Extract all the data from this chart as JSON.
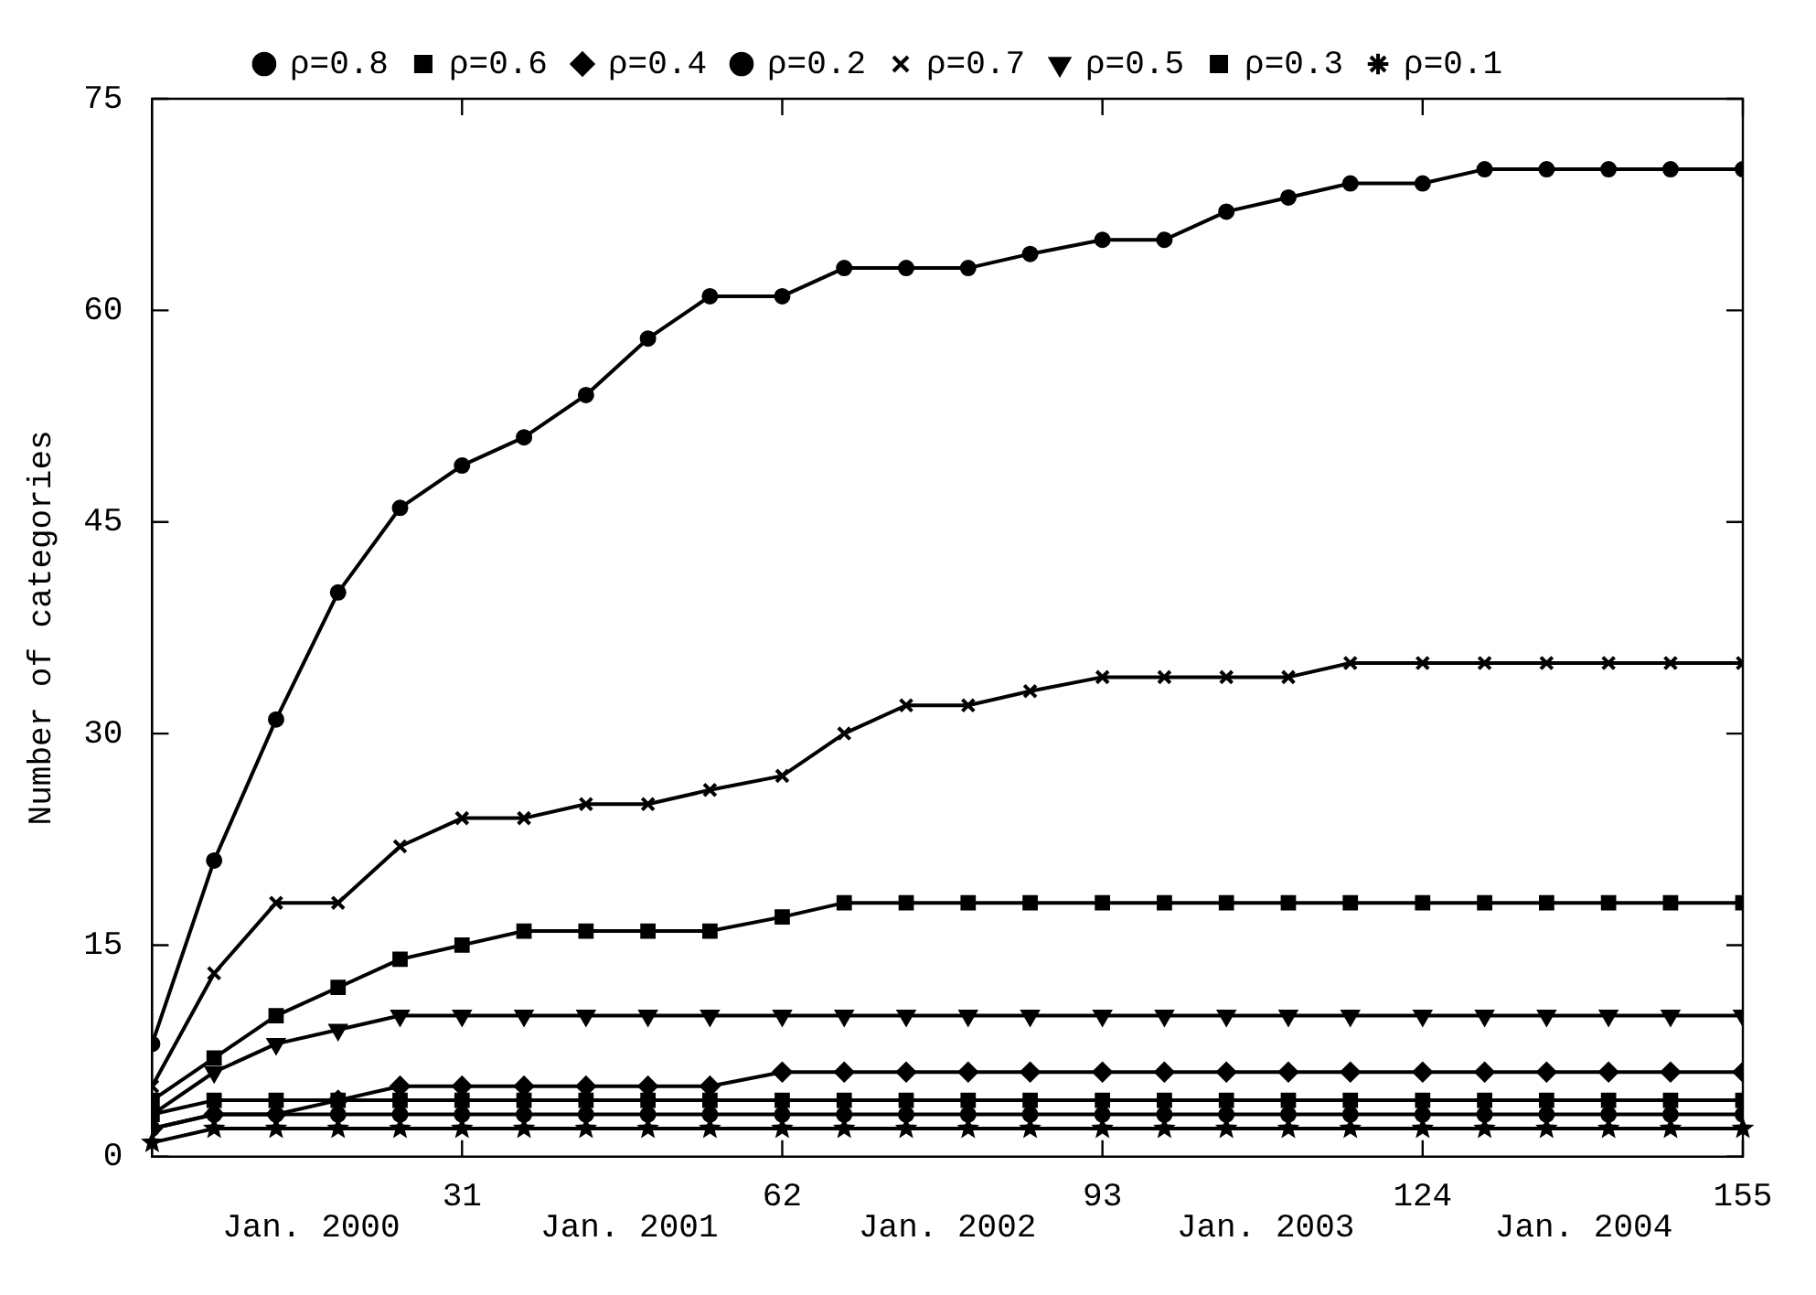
{
  "chart_data": {
    "type": "line",
    "ylabel": "Number of categories",
    "x": [
      1,
      7,
      13,
      19,
      25,
      31,
      37,
      43,
      49,
      55,
      62,
      68,
      74,
      80,
      86,
      93,
      99,
      105,
      111,
      117,
      124,
      130,
      136,
      142,
      148,
      155
    ],
    "xlim": [
      1,
      155
    ],
    "xticks": [
      31,
      62,
      93,
      124,
      155
    ],
    "annotations": [
      "Jan. 2000",
      "Jan. 2001",
      "Jan. 2002",
      "Jan. 2003",
      "Jan. 2004"
    ],
    "ylim": [
      0,
      75
    ],
    "yticks": [
      0,
      15,
      30,
      45,
      60,
      75
    ],
    "legend": "top",
    "line_style": "solid",
    "series": [
      {
        "name": "ρ=0.8",
        "color": "#000000",
        "marker": "circle",
        "values": [
          8,
          21,
          31,
          40,
          46,
          49,
          51,
          54,
          58,
          61,
          61,
          63,
          63,
          63,
          64,
          65,
          65,
          67,
          68,
          69,
          69,
          70,
          70,
          70,
          70,
          70
        ]
      },
      {
        "name": "ρ=0.6",
        "color": "#000000",
        "marker": "square",
        "values": [
          4,
          7,
          10,
          12,
          14,
          15,
          16,
          16,
          16,
          16,
          17,
          18,
          18,
          18,
          18,
          18,
          18,
          18,
          18,
          18,
          18,
          18,
          18,
          18,
          18,
          18
        ]
      },
      {
        "name": "ρ=0.4",
        "color": "#000000",
        "marker": "diamond",
        "values": [
          2,
          3,
          3,
          4,
          5,
          5,
          5,
          5,
          5,
          5,
          6,
          6,
          6,
          6,
          6,
          6,
          6,
          6,
          6,
          6,
          6,
          6,
          6,
          6,
          6,
          6
        ]
      },
      {
        "name": "ρ=0.2",
        "color": "#000000",
        "marker": "circle",
        "values": [
          2,
          3,
          3,
          3,
          3,
          3,
          3,
          3,
          3,
          3,
          3,
          3,
          3,
          3,
          3,
          3,
          3,
          3,
          3,
          3,
          3,
          3,
          3,
          3,
          3,
          3
        ]
      },
      {
        "name": "ρ=0.7",
        "color": "#000000",
        "marker": "cross",
        "values": [
          5,
          13,
          18,
          18,
          22,
          24,
          24,
          25,
          25,
          26,
          27,
          30,
          32,
          32,
          33,
          34,
          34,
          34,
          34,
          35,
          35,
          35,
          35,
          35,
          35,
          35
        ]
      },
      {
        "name": "ρ=0.5",
        "color": "#000000",
        "marker": "triangle",
        "values": [
          3,
          6,
          8,
          9,
          10,
          10,
          10,
          10,
          10,
          10,
          10,
          10,
          10,
          10,
          10,
          10,
          10,
          10,
          10,
          10,
          10,
          10,
          10,
          10,
          10,
          10
        ]
      },
      {
        "name": "ρ=0.3",
        "color": "#000000",
        "marker": "square",
        "values": [
          3,
          4,
          4,
          4,
          4,
          4,
          4,
          4,
          4,
          4,
          4,
          4,
          4,
          4,
          4,
          4,
          4,
          4,
          4,
          4,
          4,
          4,
          4,
          4,
          4,
          4
        ]
      },
      {
        "name": "ρ=0.1",
        "color": "#000000",
        "marker": "star",
        "values": [
          1,
          2,
          2,
          2,
          2,
          2,
          2,
          2,
          2,
          2,
          2,
          2,
          2,
          2,
          2,
          2,
          2,
          2,
          2,
          2,
          2,
          2,
          2,
          2,
          2,
          2
        ]
      }
    ]
  }
}
